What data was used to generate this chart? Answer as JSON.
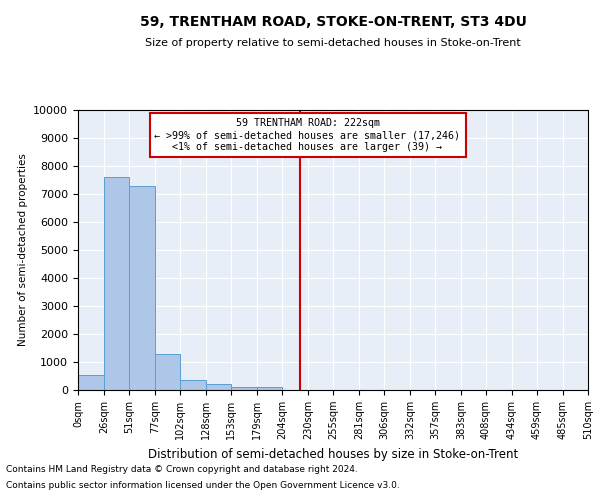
{
  "title": "59, TRENTHAM ROAD, STOKE-ON-TRENT, ST3 4DU",
  "subtitle": "Size of property relative to semi-detached houses in Stoke-on-Trent",
  "xlabel": "Distribution of semi-detached houses by size in Stoke-on-Trent",
  "ylabel": "Number of semi-detached properties",
  "footnote1": "Contains HM Land Registry data © Crown copyright and database right 2024.",
  "footnote2": "Contains public sector information licensed under the Open Government Licence v3.0.",
  "property_label": "59 TRENTHAM ROAD: 222sqm",
  "annotation_line1": "← >99% of semi-detached houses are smaller (17,246)",
  "annotation_line2": "<1% of semi-detached houses are larger (39) →",
  "bin_edges": [
    0,
    26,
    51,
    77,
    102,
    128,
    153,
    179,
    204,
    230,
    255,
    281,
    306,
    332,
    357,
    383,
    408,
    434,
    459,
    485,
    510
  ],
  "bar_heights": [
    550,
    7600,
    7300,
    1300,
    350,
    200,
    100,
    100,
    0,
    0,
    0,
    0,
    0,
    0,
    0,
    0,
    0,
    0,
    0,
    0
  ],
  "bar_color": "#aec6e8",
  "bar_edge_color": "#5a9fd4",
  "vline_x": 222,
  "vline_color": "#cc0000",
  "annotation_box_color": "#cc0000",
  "background_color": "#e8eef7",
  "ylim": [
    0,
    10000
  ],
  "yticks": [
    0,
    1000,
    2000,
    3000,
    4000,
    5000,
    6000,
    7000,
    8000,
    9000,
    10000
  ]
}
